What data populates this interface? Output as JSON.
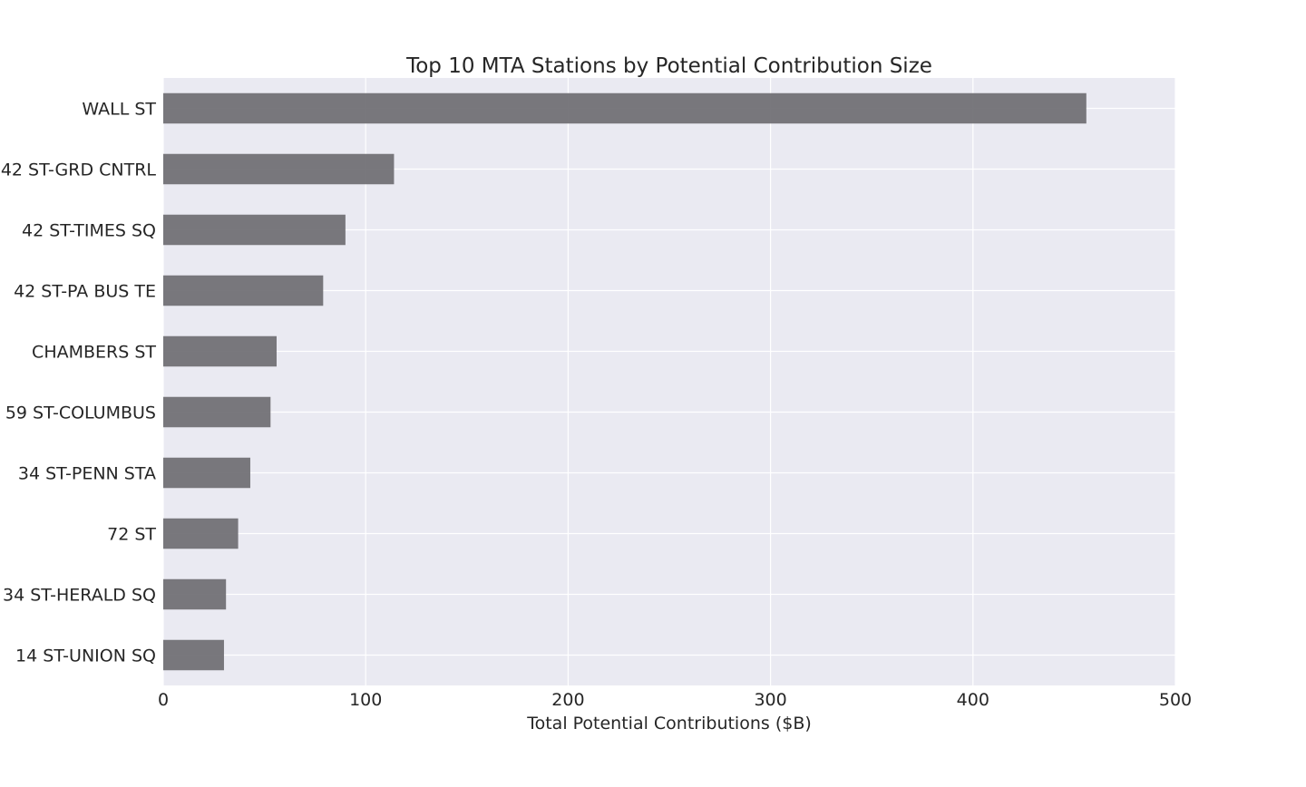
{
  "chart_data": {
    "type": "bar",
    "orientation": "horizontal",
    "title": "Top 10 MTA Stations by Potential Contribution Size",
    "xlabel": "Total Potential Contributions ($B)",
    "ylabel": "",
    "xlim": [
      0,
      500
    ],
    "xticks": [
      "0",
      "100",
      "200",
      "300",
      "400",
      "500"
    ],
    "categories": [
      "WALL ST",
      "42 ST-GRD CNTRL",
      "42 ST-TIMES SQ",
      "42 ST-PA BUS TE",
      "CHAMBERS ST",
      "59 ST-COLUMBUS",
      "34 ST-PENN STA",
      "72 ST",
      "34 ST-HERALD SQ",
      "14 ST-UNION SQ"
    ],
    "values": [
      456,
      114,
      90,
      79,
      56,
      53,
      43,
      37,
      31,
      30
    ],
    "grid": true,
    "legend": "none",
    "colors": {
      "bar": "#6e6d72",
      "background": "#eaeaf2",
      "grid": "#ffffff",
      "text": "#262626"
    }
  }
}
